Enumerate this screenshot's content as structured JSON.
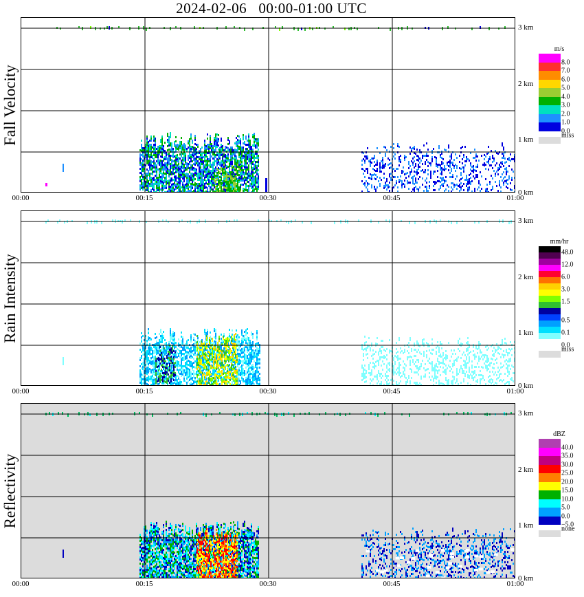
{
  "title": "2024-02-06   00:00-01:00 UTC",
  "x_ticks": [
    "00:00",
    "00:15",
    "00:30",
    "00:45",
    "01:00"
  ],
  "height_ticks": [
    "3 km",
    "2 km",
    "1 km",
    "0 km"
  ],
  "colors": {
    "missing": "#dcdcdc",
    "grid": "#000000"
  },
  "panels": [
    {
      "label": "Fall Velocity",
      "unit": "m/s",
      "legend": [
        {
          "label": "8.0",
          "color": "#ff00ff"
        },
        {
          "label": "7.0",
          "color": "#ff3030"
        },
        {
          "label": "6.0",
          "color": "#ff8c00"
        },
        {
          "label": "5.0",
          "color": "#ffd700"
        },
        {
          "label": "4.0",
          "color": "#9acd32"
        },
        {
          "label": "3.0",
          "color": "#00b000"
        },
        {
          "label": "2.0",
          "color": "#00e0c0"
        },
        {
          "label": "1.0",
          "color": "#1e90ff"
        },
        {
          "label": "0.0",
          "color": "#0000e0"
        }
      ],
      "miss_label": "miss",
      "background": "#ffffff"
    },
    {
      "label": "Rain Intensity",
      "unit": "mm/hr",
      "legend": [
        {
          "label": "48.0",
          "color": "#000000"
        },
        {
          "label": "",
          "color": "#500050"
        },
        {
          "label": "12.0",
          "color": "#a000a0"
        },
        {
          "label": "",
          "color": "#ff00ff"
        },
        {
          "label": "6.0",
          "color": "#ff0030"
        },
        {
          "label": "",
          "color": "#ff7000"
        },
        {
          "label": "3.0",
          "color": "#ffd000"
        },
        {
          "label": "",
          "color": "#ffff00"
        },
        {
          "label": "1.5",
          "color": "#80ff00"
        },
        {
          "label": "",
          "color": "#30c030"
        },
        {
          "label": "",
          "color": "#0000a0"
        },
        {
          "label": "0.5",
          "color": "#0040ff"
        },
        {
          "label": "",
          "color": "#00a0ff"
        },
        {
          "label": "0.1",
          "color": "#00e0ff"
        },
        {
          "label": "",
          "color": "#80ffff"
        },
        {
          "label": "0.0",
          "color": "#ffffff"
        }
      ],
      "miss_label": "miss",
      "background": "#ffffff"
    },
    {
      "label": "Reflectivity",
      "unit": "dBZ",
      "legend": [
        {
          "label": "40.0",
          "color": "#b040b0"
        },
        {
          "label": "35.0",
          "color": "#ff00ff"
        },
        {
          "label": "30.0",
          "color": "#c00080"
        },
        {
          "label": "25.0",
          "color": "#ff0000"
        },
        {
          "label": "20.0",
          "color": "#ff8000"
        },
        {
          "label": "15.0",
          "color": "#ffff00"
        },
        {
          "label": "10.0",
          "color": "#00b000"
        },
        {
          "label": "5.0",
          "color": "#00ffff"
        },
        {
          "label": "0.0",
          "color": "#00a0ff"
        },
        {
          "label": "−5.0",
          "color": "#0000c0"
        }
      ],
      "miss_label": "none",
      "background": "#dcdcdc"
    }
  ]
}
